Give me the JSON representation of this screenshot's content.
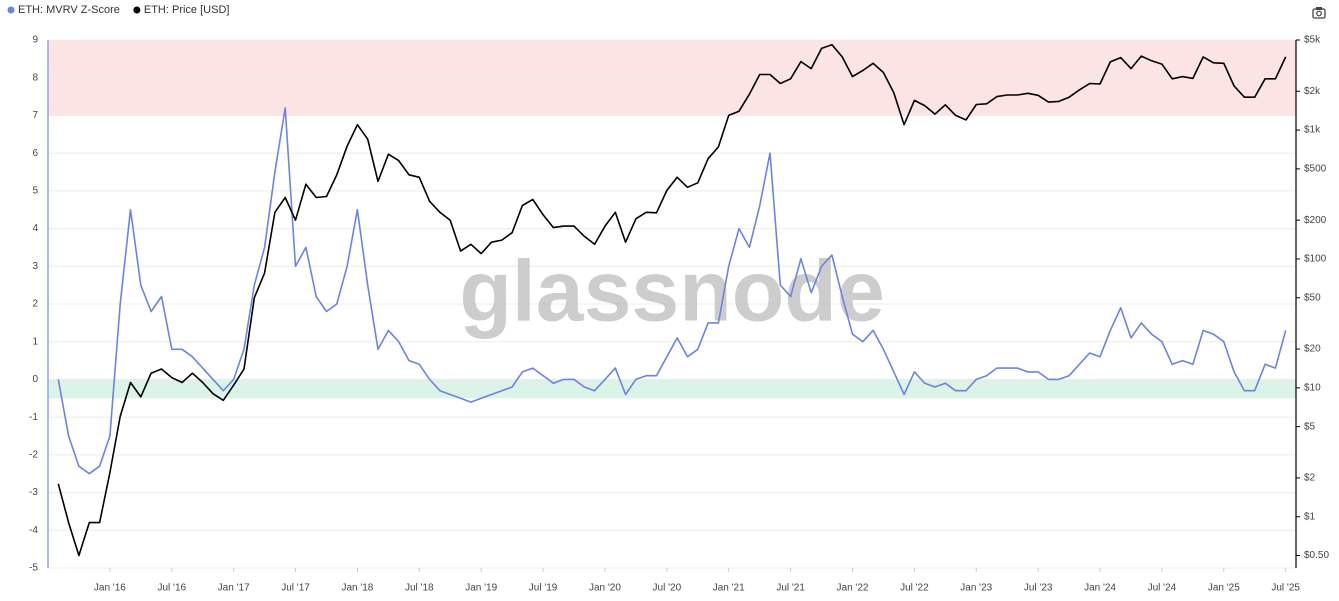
{
  "chart_data": {
    "type": "line",
    "watermark": "glassnode",
    "x": [
      "2015-08",
      "2015-09",
      "2015-10",
      "2015-11",
      "2015-12",
      "2016-01",
      "2016-02",
      "2016-03",
      "2016-04",
      "2016-05",
      "2016-06",
      "2016-07",
      "2016-08",
      "2016-09",
      "2016-10",
      "2016-11",
      "2016-12",
      "2017-01",
      "2017-02",
      "2017-03",
      "2017-04",
      "2017-05",
      "2017-06",
      "2017-07",
      "2017-08",
      "2017-09",
      "2017-10",
      "2017-11",
      "2017-12",
      "2018-01",
      "2018-02",
      "2018-03",
      "2018-04",
      "2018-05",
      "2018-06",
      "2018-07",
      "2018-08",
      "2018-09",
      "2018-10",
      "2018-11",
      "2018-12",
      "2019-01",
      "2019-02",
      "2019-03",
      "2019-04",
      "2019-05",
      "2019-06",
      "2019-07",
      "2019-08",
      "2019-09",
      "2019-10",
      "2019-11",
      "2019-12",
      "2020-01",
      "2020-02",
      "2020-03",
      "2020-04",
      "2020-05",
      "2020-06",
      "2020-07",
      "2020-08",
      "2020-09",
      "2020-10",
      "2020-11",
      "2020-12",
      "2021-01",
      "2021-02",
      "2021-03",
      "2021-04",
      "2021-05",
      "2021-06",
      "2021-07",
      "2021-08",
      "2021-09",
      "2021-10",
      "2021-11",
      "2021-12",
      "2022-01",
      "2022-02",
      "2022-03",
      "2022-04",
      "2022-05",
      "2022-06",
      "2022-07",
      "2022-08",
      "2022-09",
      "2022-10",
      "2022-11",
      "2022-12",
      "2023-01",
      "2023-02",
      "2023-03",
      "2023-04",
      "2023-05",
      "2023-06",
      "2023-07",
      "2023-08",
      "2023-09",
      "2023-10",
      "2023-11",
      "2023-12",
      "2024-01",
      "2024-02",
      "2024-03",
      "2024-04",
      "2024-05",
      "2024-06",
      "2024-07",
      "2024-08",
      "2024-09",
      "2024-10",
      "2024-11",
      "2024-12",
      "2025-01",
      "2025-02",
      "2025-03",
      "2025-04",
      "2025-05",
      "2025-06",
      "2025-07"
    ],
    "series": [
      {
        "name": "ETH: MVRV Z-Score",
        "color": "#6b84e0",
        "values": [
          0,
          -1.5,
          -2.3,
          -2.5,
          -2.3,
          -1.5,
          2,
          4.5,
          2.5,
          1.8,
          2.2,
          0.8,
          0.8,
          0.6,
          0.3,
          0,
          -0.3,
          0,
          0.8,
          2.5,
          3.5,
          5.5,
          7.2,
          3,
          3.5,
          2.2,
          1.8,
          2,
          3,
          4.5,
          2.5,
          0.8,
          1.3,
          1,
          0.5,
          0.4,
          0,
          -0.3,
          -0.4,
          -0.5,
          -0.6,
          -0.5,
          -0.4,
          -0.3,
          -0.2,
          0.2,
          0.3,
          0.1,
          -0.1,
          0,
          0,
          -0.2,
          -0.3,
          0,
          0.3,
          -0.4,
          0,
          0.1,
          0.1,
          0.6,
          1.1,
          0.6,
          0.8,
          1.5,
          1.5,
          3,
          4,
          3.5,
          4.6,
          6,
          2.5,
          2.2,
          3.2,
          2.3,
          3,
          3.3,
          2.2,
          1.2,
          1,
          1.3,
          0.8,
          0.2,
          -0.4,
          0.2,
          -0.1,
          -0.2,
          -0.1,
          -0.3,
          -0.3,
          0,
          0.1,
          0.3,
          0.3,
          0.3,
          0.2,
          0.2,
          0,
          0,
          0.1,
          0.4,
          0.7,
          0.6,
          1.3,
          1.9,
          1.1,
          1.5,
          1.2,
          1,
          0.4,
          0.5,
          0.4,
          1.3,
          1.2,
          1,
          0.2,
          -0.3,
          -0.3,
          0.4,
          0.3,
          1.3
        ]
      },
      {
        "name": "ETH: Price [USD]",
        "color": "#000000",
        "axis": "y2",
        "values": [
          1.8,
          0.9,
          0.5,
          0.9,
          0.9,
          2.2,
          6,
          11,
          8.5,
          13,
          14,
          12,
          11,
          13,
          11,
          9,
          8,
          10.5,
          14,
          50,
          78,
          230,
          300,
          200,
          380,
          300,
          305,
          450,
          750,
          1100,
          850,
          400,
          650,
          580,
          450,
          430,
          280,
          230,
          200,
          115,
          130,
          110,
          135,
          140,
          160,
          260,
          290,
          220,
          175,
          180,
          180,
          150,
          130,
          180,
          230,
          135,
          205,
          230,
          228,
          340,
          430,
          360,
          390,
          600,
          740,
          1300,
          1400,
          1900,
          2700,
          2700,
          2300,
          2500,
          3400,
          3000,
          4300,
          4600,
          3700,
          2600,
          2900,
          3300,
          2800,
          1950,
          1100,
          1700,
          1550,
          1330,
          1570,
          1300,
          1200,
          1580,
          1600,
          1820,
          1870,
          1870,
          1930,
          1860,
          1650,
          1670,
          1800,
          2050,
          2300,
          2280,
          3380,
          3650,
          3000,
          3750,
          3450,
          3250,
          2500,
          2600,
          2520,
          3700,
          3330,
          3300,
          2200,
          1800,
          1800,
          2500,
          2500,
          3700
        ]
      }
    ],
    "xlim": [
      "2015-07",
      "2025-08"
    ],
    "xticks": [
      {
        "value": "2016-01",
        "label": "Jan '16"
      },
      {
        "value": "2016-07",
        "label": "Jul '16"
      },
      {
        "value": "2017-01",
        "label": "Jan '17"
      },
      {
        "value": "2017-07",
        "label": "Jul '17"
      },
      {
        "value": "2018-01",
        "label": "Jan '18"
      },
      {
        "value": "2018-07",
        "label": "Jul '18"
      },
      {
        "value": "2019-01",
        "label": "Jan '19"
      },
      {
        "value": "2019-07",
        "label": "Jul '19"
      },
      {
        "value": "2020-01",
        "label": "Jan '20"
      },
      {
        "value": "2020-07",
        "label": "Jul '20"
      },
      {
        "value": "2021-01",
        "label": "Jan '21"
      },
      {
        "value": "2021-07",
        "label": "Jul '21"
      },
      {
        "value": "2022-01",
        "label": "Jan '22"
      },
      {
        "value": "2022-07",
        "label": "Jul '22"
      },
      {
        "value": "2023-01",
        "label": "Jan '23"
      },
      {
        "value": "2023-07",
        "label": "Jul '23"
      },
      {
        "value": "2024-01",
        "label": "Jan '24"
      },
      {
        "value": "2024-07",
        "label": "Jul '24"
      },
      {
        "value": "2025-01",
        "label": "Jan '25"
      },
      {
        "value": "2025-07",
        "label": "Jul '25"
      }
    ],
    "ylim": [
      -5,
      9
    ],
    "yticks": [
      -5,
      -4,
      -3,
      -2,
      -1,
      0,
      1,
      2,
      3,
      4,
      5,
      6,
      7,
      8,
      9
    ],
    "y2lim": [
      0.4,
      5000
    ],
    "y2scale": "log",
    "y2ticks": [
      {
        "value": 0.5,
        "label": "$0.50"
      },
      {
        "value": 1,
        "label": "$1"
      },
      {
        "value": 2,
        "label": "$2"
      },
      {
        "value": 5,
        "label": "$5"
      },
      {
        "value": 10,
        "label": "$10"
      },
      {
        "value": 20,
        "label": "$20"
      },
      {
        "value": 50,
        "label": "$50"
      },
      {
        "value": 100,
        "label": "$100"
      },
      {
        "value": 200,
        "label": "$200"
      },
      {
        "value": 500,
        "label": "$500"
      },
      {
        "value": 1000,
        "label": "$1k"
      },
      {
        "value": 2000,
        "label": "$2k"
      },
      {
        "value": 5000,
        "label": "$5k"
      }
    ],
    "zones": [
      {
        "from": 7,
        "to": 9,
        "color": "#fde4e4"
      },
      {
        "from": -0.5,
        "to": 0,
        "color": "#dcf3e8"
      }
    ],
    "grid": true,
    "legend": "top-left"
  }
}
